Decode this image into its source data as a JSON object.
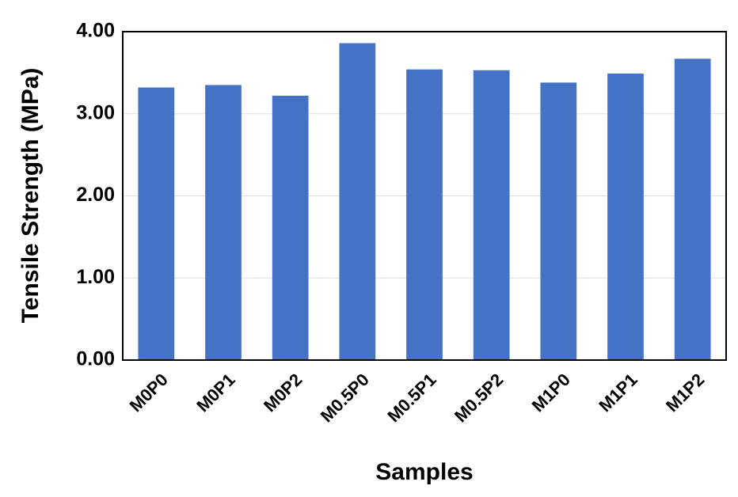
{
  "chart_data": {
    "type": "bar",
    "x_label": "Samples",
    "y_label": "Tensile Strength (MPa)",
    "categories": [
      "M0P0",
      "M0P1",
      "M0P2",
      "M0.5P0",
      "M0.5P1",
      "M0.5P2",
      "M1P0",
      "M1P1",
      "M1P2"
    ],
    "values": [
      3.32,
      3.35,
      3.22,
      3.86,
      3.54,
      3.53,
      3.38,
      3.49,
      3.67
    ],
    "color": "#4472c4",
    "ylim": [
      0,
      4
    ],
    "yticks": [
      {
        "value": 0,
        "label": "0.00"
      },
      {
        "value": 1,
        "label": "1.00"
      },
      {
        "value": 2,
        "label": "2.00"
      },
      {
        "value": 3,
        "label": "3.00"
      },
      {
        "value": 4,
        "label": "4.00"
      }
    ],
    "grid": true
  }
}
